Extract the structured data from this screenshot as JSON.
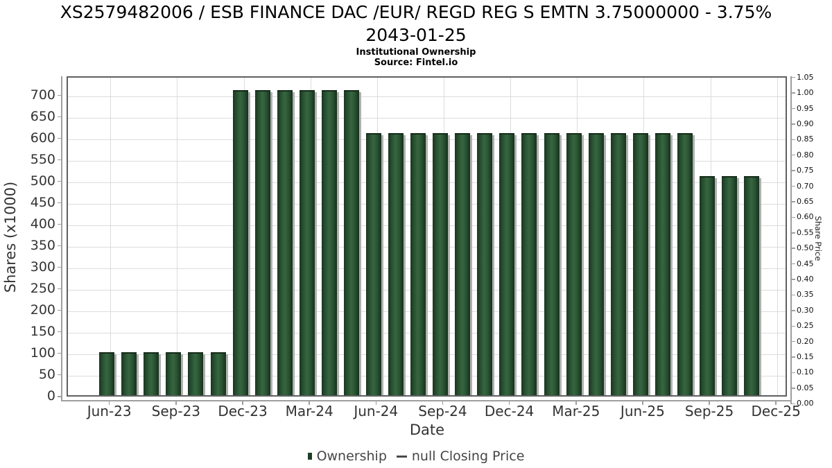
{
  "header": {
    "title_line1": "XS2579482006 / ESB FINANCE DAC /EUR/ REGD REG S EMTN 3.75000000 - 3.75%",
    "title_line2": "2043-01-25",
    "subtitle": "Institutional Ownership",
    "source": "Source: Fintel.io"
  },
  "legend": {
    "items": [
      {
        "label": "Ownership",
        "marker": "square",
        "color": "#1e4026"
      },
      {
        "label": "null Closing Price",
        "marker": "dash",
        "color": "#4a4a4a"
      }
    ]
  },
  "colors": {
    "bar_edge": "#1b3522",
    "bar_mid": "#366641",
    "bar_shadow": "#b0b0b0",
    "gridline": "#dcdcdc",
    "plot_border": "#5f5f5f",
    "axis_line": "#9e9e9e",
    "tick_text": "#333333",
    "legend_text": "#454545"
  },
  "chart_data": {
    "type": "bar",
    "title": "XS2579482006 / ESB FINANCE DAC /EUR/ REGD REG S EMTN 3.75000000 - 3.75% 2043-01-25",
    "subtitle": "Institutional Ownership",
    "source": "Source: Fintel.io",
    "xlabel": "Date",
    "ylabel_left": "Shares (x1000)",
    "ylabel_right": "Share Price",
    "grid": true,
    "legend_position": "bottom",
    "ylim_left": [
      0,
      745
    ],
    "ylim_right": [
      0.0,
      1.05
    ],
    "left_axis_ticks": [
      0,
      50,
      100,
      150,
      200,
      250,
      300,
      350,
      400,
      450,
      500,
      550,
      600,
      650,
      700
    ],
    "right_axis_ticks": [
      "0.00",
      "0.05",
      "0.10",
      "0.15",
      "0.20",
      "0.25",
      "0.30",
      "0.35",
      "0.40",
      "0.45",
      "0.50",
      "0.55",
      "0.60",
      "0.65",
      "0.70",
      "0.75",
      "0.80",
      "0.85",
      "0.90",
      "0.95",
      "1.00",
      "1.05"
    ],
    "x_tick_labels": [
      "Jun-23",
      "Sep-23",
      "Dec-23",
      "Mar-24",
      "Jun-24",
      "Sep-24",
      "Dec-24",
      "Mar-25",
      "Jun-25",
      "Sep-25",
      "Dec-25"
    ],
    "categories": [
      "Jun-23",
      "Jul-23",
      "Aug-23",
      "Sep-23",
      "Oct-23",
      "Nov-23",
      "Dec-23",
      "Jan-24",
      "Feb-24",
      "Mar-24",
      "Apr-24",
      "May-24",
      "Jun-24",
      "Jul-24",
      "Aug-24",
      "Sep-24",
      "Oct-24",
      "Nov-24",
      "Dec-24",
      "Jan-25",
      "Feb-25",
      "Mar-25",
      "Apr-25",
      "May-25",
      "Jun-25",
      "Jul-25",
      "Aug-25",
      "Sep-25",
      "Oct-25",
      "Nov-25"
    ],
    "series": [
      {
        "name": "Ownership",
        "values": [
          100,
          100,
          100,
          100,
          100,
          100,
          710,
          710,
          710,
          710,
          710,
          710,
          610,
          610,
          610,
          610,
          610,
          610,
          610,
          610,
          610,
          610,
          610,
          610,
          610,
          610,
          610,
          510,
          510,
          510
        ]
      },
      {
        "name": "null Closing Price",
        "values": []
      }
    ]
  }
}
